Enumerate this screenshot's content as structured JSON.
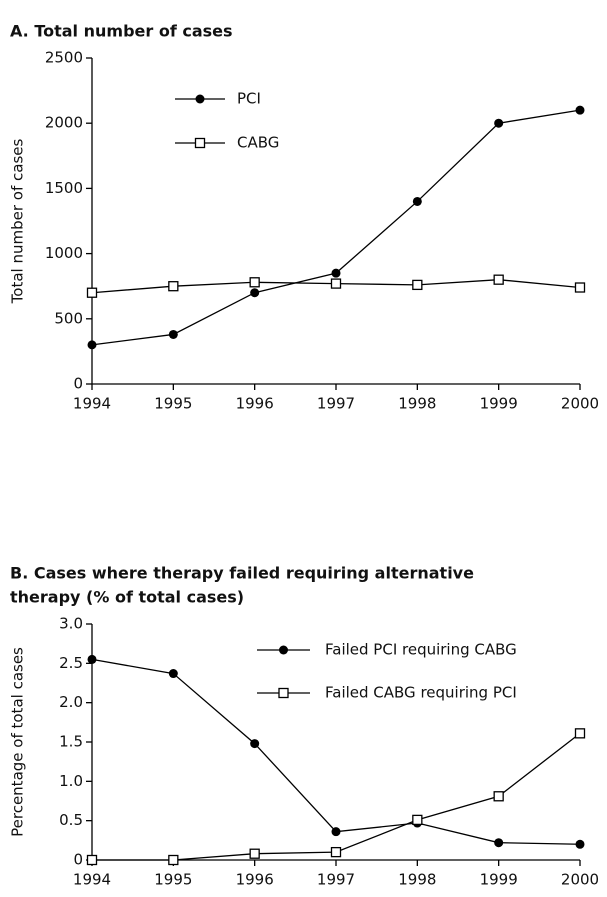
{
  "chart_data": [
    {
      "type": "line",
      "title": "A. Total number of cases",
      "y_label": "Total number of cases",
      "x": [
        1994,
        1995,
        1996,
        1997,
        1998,
        1999,
        2000
      ],
      "xlim": [
        1994,
        2000
      ],
      "xticks": [
        1994,
        1995,
        1996,
        1997,
        1998,
        1999,
        2000
      ],
      "ylim": [
        0,
        2500
      ],
      "yticks": [
        0,
        500,
        1000,
        1500,
        2000,
        2500
      ],
      "series": [
        {
          "name": "PCI",
          "color": "#000000",
          "marker": "filled-circle",
          "values": [
            300,
            380,
            700,
            850,
            1400,
            2000,
            2100
          ]
        },
        {
          "name": "CABG",
          "color": "#000000",
          "marker": "open-square",
          "values": [
            700,
            750,
            780,
            770,
            760,
            800,
            740
          ]
        }
      ]
    },
    {
      "type": "line",
      "title": [
        "B. Cases where therapy failed requiring alternative",
        "therapy (% of total cases)"
      ],
      "y_label": "Percentage of total cases",
      "x": [
        1994,
        1995,
        1996,
        1997,
        1998,
        1999,
        2000
      ],
      "xlim": [
        1994,
        2000
      ],
      "xticks": [
        1994,
        1995,
        1996,
        1997,
        1998,
        1999,
        2000
      ],
      "ylim": [
        0,
        3
      ],
      "yticks": [
        0,
        0.5,
        {
          "value": 1,
          "label": "1.0"
        },
        1.5,
        {
          "value": 2,
          "label": "2.0"
        },
        2.5,
        {
          "value": 3,
          "label": "3.0"
        }
      ],
      "series": [
        {
          "name": "Failed PCI requiring CABG",
          "color": "#000000",
          "marker": "filled-circle",
          "values": [
            2.55,
            2.37,
            1.48,
            0.36,
            0.47,
            0.22,
            0.2
          ]
        },
        {
          "name": "Failed CABG requiring PCI",
          "color": "#000000",
          "marker": "open-square",
          "values": [
            0,
            0,
            0.08,
            0.1,
            0.51,
            0.81,
            1.61
          ]
        }
      ]
    }
  ]
}
